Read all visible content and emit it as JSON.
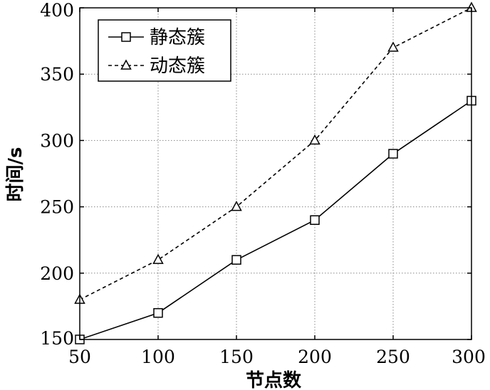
{
  "chart_data": {
    "type": "line",
    "xlabel": "节点数",
    "ylabel": "时间/s",
    "x": [
      50,
      100,
      150,
      200,
      250,
      300
    ],
    "xlim": [
      50,
      300
    ],
    "ylim": [
      150,
      400
    ],
    "xticks": [
      50,
      100,
      150,
      200,
      250,
      300
    ],
    "yticks": [
      150,
      200,
      250,
      300,
      350,
      400
    ],
    "grid": true,
    "legend_position": "top-left",
    "series": [
      {
        "name": "静态簇",
        "values": [
          150,
          170,
          210,
          240,
          290,
          330
        ],
        "line_style": "solid",
        "marker": "square",
        "color": "#000000"
      },
      {
        "name": "动态簇",
        "values": [
          180,
          210,
          250,
          300,
          370,
          400
        ],
        "line_style": "dashed",
        "marker": "triangle",
        "color": "#000000"
      }
    ]
  }
}
